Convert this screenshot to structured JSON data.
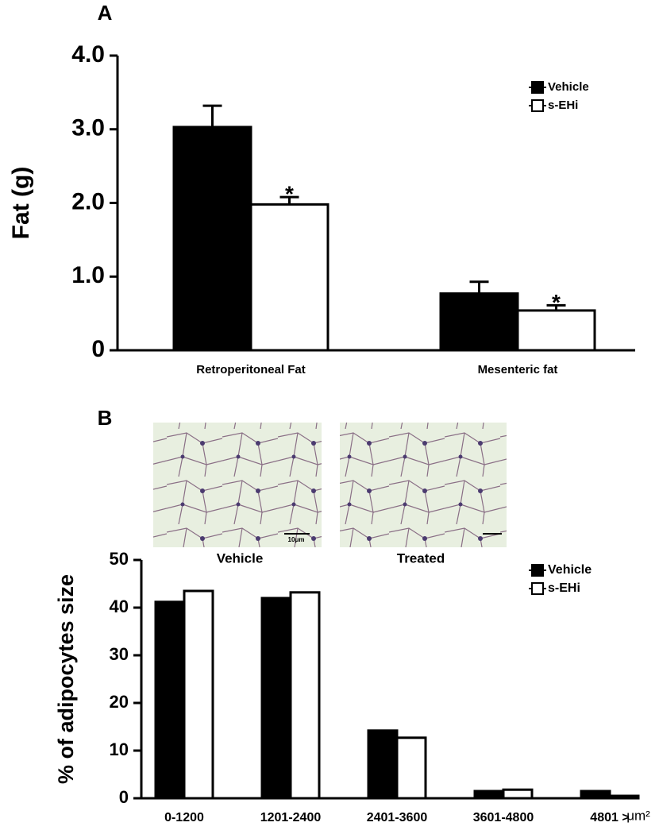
{
  "chart_data": [
    {
      "type": "bar",
      "panel": "A",
      "y_label": "Fat (g)",
      "categories": [
        "Retroperitoneal Fat",
        "Mesenteric fat"
      ],
      "series": [
        {
          "name": "Vehicle",
          "color": "#000000",
          "values": [
            3.03,
            0.77
          ],
          "errors": [
            0.29,
            0.16
          ]
        },
        {
          "name": "s-EHi",
          "color": "#ffffff",
          "values": [
            1.98,
            0.54
          ],
          "errors": [
            0.1,
            0.07
          ],
          "annotations": [
            "*",
            "*"
          ]
        }
      ],
      "ylim": [
        0,
        4
      ],
      "yticks": [
        0,
        {
          "value": 1,
          "label": "1.0"
        },
        {
          "value": 2,
          "label": "2.0"
        },
        {
          "value": 3,
          "label": "3.0"
        },
        {
          "value": 4,
          "label": "4.0"
        }
      ],
      "legend": "upper right"
    },
    {
      "type": "bar",
      "panel": "B",
      "y_label": "% of adipocytes size",
      "x_unit": "μm²",
      "micrographs": [
        {
          "caption": "Vehicle",
          "scale_label": "10μm"
        },
        {
          "caption": "Treated"
        }
      ],
      "categories": [
        "0-1200",
        "1201-2400",
        "2401-3600",
        "3601-4800",
        "4801 >"
      ],
      "series": [
        {
          "name": "Vehicle",
          "color": "#000000",
          "values": [
            41.2,
            42,
            14.2,
            1.5,
            1.5
          ]
        },
        {
          "name": "s-EHi",
          "color": "#ffffff",
          "values": [
            43.5,
            43.2,
            12.7,
            1.8,
            0.5
          ]
        }
      ],
      "ylim": [
        0,
        50
      ],
      "yticks": [
        0,
        10,
        20,
        30,
        40,
        50
      ],
      "legend": "upper right"
    }
  ]
}
